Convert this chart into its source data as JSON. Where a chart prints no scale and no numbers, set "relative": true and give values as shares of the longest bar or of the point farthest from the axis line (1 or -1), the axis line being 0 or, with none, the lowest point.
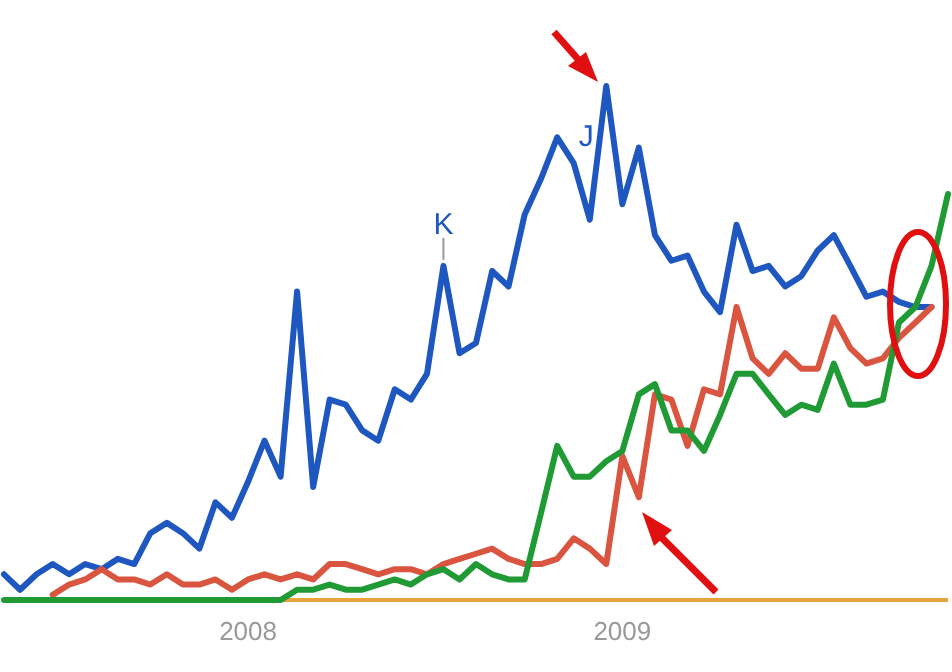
{
  "chart_data": {
    "type": "line",
    "relative": true,
    "x": [
      2007.848,
      2007.891,
      2007.935,
      2007.978,
      2008.022,
      2008.065,
      2008.109,
      2008.152,
      2008.196,
      2008.239,
      2008.283,
      2008.326,
      2008.37,
      2008.413,
      2008.457,
      2008.5,
      2008.544,
      2008.587,
      2008.631,
      2008.674,
      2008.718,
      2008.761,
      2008.805,
      2008.848,
      2008.892,
      2008.935,
      2008.978,
      2009.022,
      2009.065,
      2009.109,
      2009.152,
      2009.196,
      2009.239,
      2009.283,
      2009.326,
      2009.37,
      2009.413,
      2009.457,
      2009.5,
      2009.544,
      2009.587,
      2009.631,
      2009.674,
      2009.718,
      2009.761,
      2009.805,
      2009.848,
      2009.891,
      2009.935,
      2009.978,
      2010.022,
      2010.065,
      2010.109,
      2010.152,
      2010.196,
      2010.239,
      2010.283,
      2010.326,
      2010.37
    ],
    "xlim": [
      2007.848,
      2010.37
    ],
    "xticks": [
      {
        "value": 2008.5,
        "label": "2008"
      },
      {
        "value": 2009.5,
        "label": "2009"
      }
    ],
    "tick_labels": "x",
    "grid": false,
    "marker": "none",
    "line_style": "solid",
    "series": [
      {
        "color": "#1f57c0",
        "values": [
          0.05,
          0.02,
          0.05,
          0.07,
          0.05,
          0.07,
          0.06,
          0.08,
          0.07,
          0.13,
          0.15,
          0.13,
          0.1,
          0.19,
          0.16,
          0.23,
          0.31,
          0.24,
          0.6,
          0.22,
          0.39,
          0.38,
          0.33,
          0.31,
          0.41,
          0.39,
          0.44,
          0.65,
          0.48,
          0.5,
          0.64,
          0.61,
          0.75,
          0.82,
          0.9,
          0.85,
          0.74,
          1.0,
          0.77,
          0.88,
          0.71,
          0.66,
          0.67,
          0.6,
          0.56,
          0.73,
          0.64,
          0.65,
          0.61,
          0.63,
          0.68,
          0.71,
          0.65,
          0.59,
          0.6,
          0.58,
          0.57,
          0.57,
          null
        ]
      },
      {
        "color": "#d9553f",
        "values": [
          null,
          null,
          null,
          0.01,
          0.03,
          0.04,
          0.06,
          0.04,
          0.04,
          0.03,
          0.05,
          0.03,
          0.03,
          0.04,
          0.02,
          0.04,
          0.05,
          0.04,
          0.05,
          0.04,
          0.07,
          0.07,
          0.06,
          0.05,
          0.06,
          0.06,
          0.05,
          0.07,
          0.08,
          0.09,
          0.1,
          0.08,
          0.07,
          0.07,
          0.08,
          0.12,
          0.1,
          0.07,
          0.28,
          0.2,
          0.4,
          0.39,
          0.3,
          0.41,
          0.4,
          0.57,
          0.47,
          0.44,
          0.48,
          0.45,
          0.45,
          0.55,
          0.49,
          0.46,
          0.47,
          0.51,
          0.54,
          0.57,
          null
        ]
      },
      {
        "color": "#1f9a34",
        "values": [
          0,
          0,
          0,
          0,
          0,
          0,
          0,
          0,
          0,
          0,
          0,
          0,
          0,
          0,
          0,
          0,
          0,
          0,
          0.02,
          0.02,
          0.03,
          0.02,
          0.02,
          0.03,
          0.04,
          0.03,
          0.05,
          0.06,
          0.04,
          0.07,
          0.05,
          0.04,
          0.04,
          0.17,
          0.3,
          0.24,
          0.24,
          0.27,
          0.29,
          0.4,
          0.42,
          0.33,
          0.33,
          0.29,
          0.36,
          0.44,
          0.44,
          0.4,
          0.36,
          0.38,
          0.37,
          0.46,
          0.38,
          0.38,
          0.39,
          0.54,
          0.57,
          0.65,
          0.79
        ]
      }
    ],
    "annotations": [
      {
        "text": "K",
        "x": 2009.022,
        "y": 0.65
      },
      {
        "text": "J",
        "x": 2009.457,
        "y": 1.0
      }
    ]
  }
}
